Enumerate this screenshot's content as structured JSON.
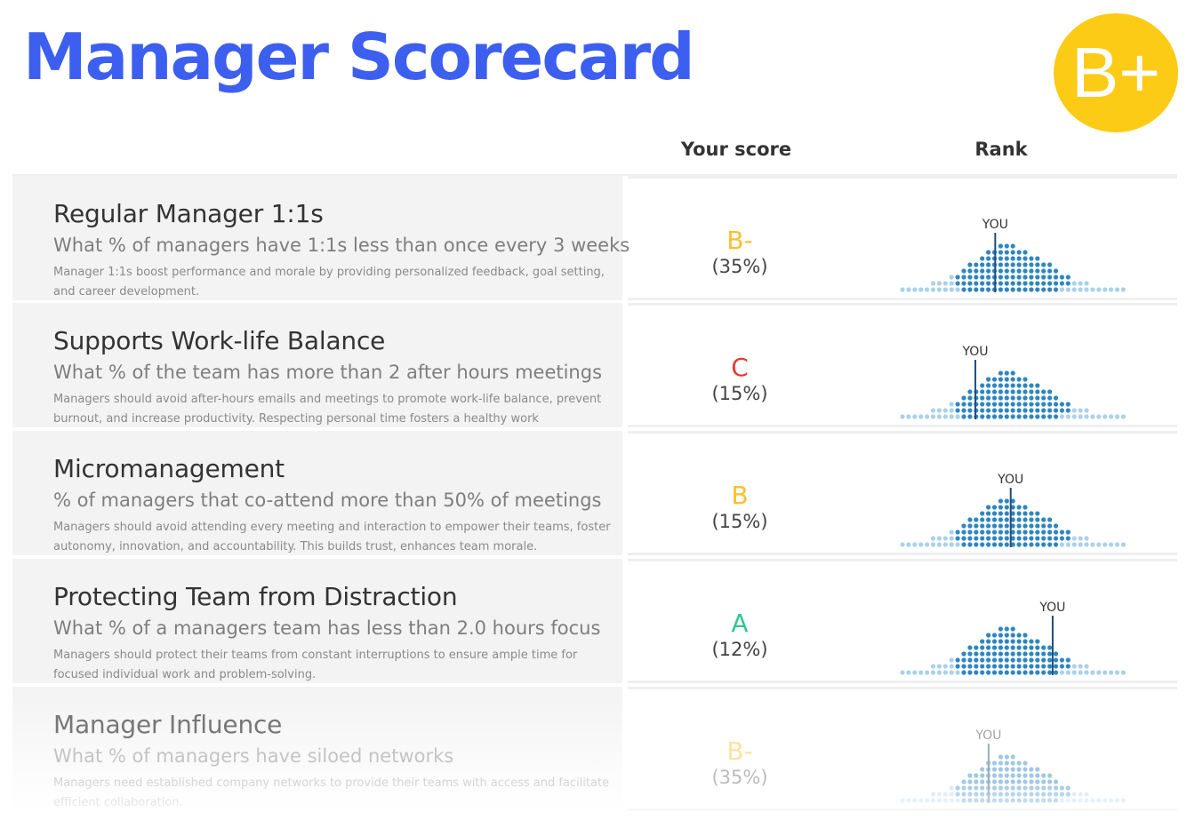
{
  "page": {
    "title": "Manager Scorecard",
    "overall_grade": "B+",
    "overall_badge_color": "#fccb15",
    "title_color": "#3d5ff0"
  },
  "columns": {
    "score": "Your score",
    "rank": "Rank"
  },
  "rank_colors": {
    "dark": "#2e86c1",
    "light": "#a9d2ea"
  },
  "grade_colors": {
    "A": "#2ec98f",
    "B": "#fbc02d",
    "C": "#e53935"
  },
  "rows": [
    {
      "title": "Regular Manager 1:1s",
      "question": "What % of managers have 1:1s less than once every 3 weeks",
      "description": "Manager 1:1s boost performance and morale by providing personalized feedback, goal setting, and career development.",
      "grade": "B-",
      "grade_color": "#fbc02d",
      "percent": "(35%)",
      "you_label": "YOU",
      "percentile": 0.42
    },
    {
      "title": "Supports Work-life Balance",
      "question": "What % of the team has more than 2 after hours meetings",
      "description": "Managers should avoid after-hours emails and meetings to promote work-life balance, prevent burnout, and increase productivity. Respecting personal time fosters a healthy work environment.",
      "grade": "C",
      "grade_color": "#e53935",
      "percent": "(15%)",
      "you_label": "YOU",
      "percentile": 0.33
    },
    {
      "title": "Micromanagement",
      "question": "% of managers that co-attend more than 50% of meetings",
      "description": "Managers should avoid attending every meeting and interaction to empower their teams, foster autonomy, innovation, and accountability. This builds trust, enhances team morale.",
      "grade": "B",
      "grade_color": "#fbc02d",
      "percent": "(15%)",
      "you_label": "YOU",
      "percentile": 0.49
    },
    {
      "title": "Protecting Team from Distraction",
      "question": "What % of a managers team has less than 2.0 hours focus",
      "description": "Managers should protect their teams from constant interruptions to ensure ample time for focused individual work and problem-solving.",
      "grade": "A",
      "grade_color": "#2ec98f",
      "percent": "(12%)",
      "you_label": "YOU",
      "percentile": 0.68
    },
    {
      "title": "Manager Influence",
      "question": "What % of managers have siloed networks",
      "description": "Managers need established company networks to provide their teams with access and facilitate efficient collaboration.",
      "grade": "B-",
      "grade_color": "#fbc02d",
      "percent": "(35%)",
      "you_label": "YOU",
      "percentile": 0.39
    }
  ]
}
